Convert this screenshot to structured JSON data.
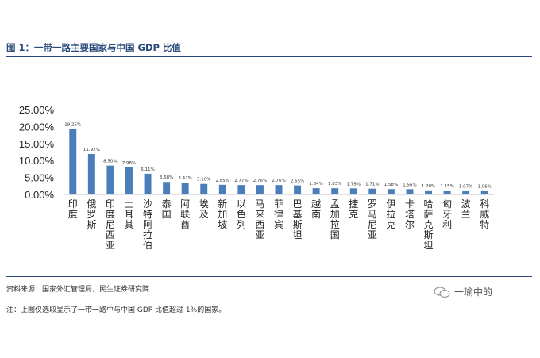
{
  "title": "图 1：一带一路主要国家与中国 GDP 比值",
  "source": "资料来源：国家外汇管理局，民生证券研究院",
  "note": "注：上图仅选取显示了一带一路中与中国 GDP 比值超过 1%的国家。",
  "watermark": "一瑜中的",
  "chart_data": {
    "type": "bar",
    "title": "",
    "xlabel": "",
    "ylabel": "",
    "ylim": [
      0,
      25
    ],
    "yticks": [
      "0.00%",
      "5.00%",
      "10.00%",
      "15.00%",
      "20.00%",
      "25.00%"
    ],
    "grid": false,
    "bar_color": "#4a7ebb",
    "categories": [
      "印度",
      "俄罗斯",
      "印度尼西亚",
      "土耳其",
      "沙特阿拉伯",
      "泰国",
      "阿联酋",
      "埃及",
      "新加坡",
      "以色列",
      "马来西亚",
      "菲律宾",
      "巴基斯坦",
      "越南",
      "孟加拉国",
      "捷克",
      "罗马尼亚",
      "伊拉克",
      "卡塔尔",
      "哈萨克斯坦",
      "匈牙利",
      "波兰",
      "科威特"
    ],
    "values": [
      19.25,
      11.92,
      8.5,
      7.98,
      6.11,
      3.68,
      3.47,
      3.1,
      2.85,
      2.77,
      2.76,
      2.76,
      2.65,
      1.84,
      1.83,
      1.79,
      1.71,
      1.58,
      1.56,
      1.2,
      1.15,
      1.07,
      1.06
    ],
    "labels": [
      "19.25%",
      "11.92%",
      "8.50%",
      "7.98%",
      "6.11%",
      "3.68%",
      "3.47%",
      "3.10%",
      "2.85%",
      "2.77%",
      "2.76%",
      "2.76%",
      "2.65%",
      "1.84%",
      "1.83%",
      "1.79%",
      "1.71%",
      "1.58%",
      "1.56%",
      "1.20%",
      "1.15%",
      "1.07%",
      "1.06%"
    ]
  }
}
